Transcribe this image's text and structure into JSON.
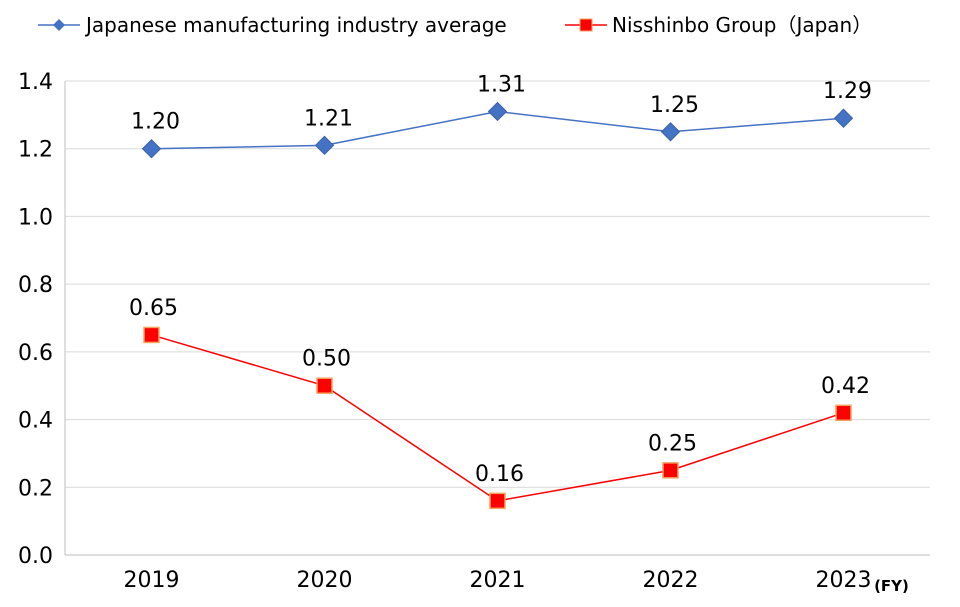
{
  "chart_data": {
    "type": "line",
    "title": "",
    "xlabel": "",
    "ylabel": "",
    "x_unit": "(FY)",
    "categories": [
      "2019",
      "2020",
      "2021",
      "2022",
      "2023"
    ],
    "ylim": [
      0.0,
      1.4
    ],
    "yticks": [
      "0.0",
      "0.2",
      "0.4",
      "0.6",
      "0.8",
      "1.0",
      "1.2",
      "1.4"
    ],
    "grid": true,
    "legend_position": "top",
    "series": [
      {
        "name": "Japanese manufacturing industry average",
        "values": [
          1.2,
          1.21,
          1.31,
          1.25,
          1.29
        ],
        "labels": [
          "1.20",
          "1.21",
          "1.31",
          "1.25",
          "1.29"
        ],
        "color": "#4472C4",
        "marker": "diamond"
      },
      {
        "name": "Nisshinbo Group（Japan）",
        "values": [
          0.65,
          0.5,
          0.16,
          0.25,
          0.42
        ],
        "labels": [
          "0.65",
          "0.50",
          "0.16",
          "0.25",
          "0.42"
        ],
        "color": "#FF0000",
        "marker": "square",
        "marker_edge": "#F4A460"
      }
    ]
  }
}
